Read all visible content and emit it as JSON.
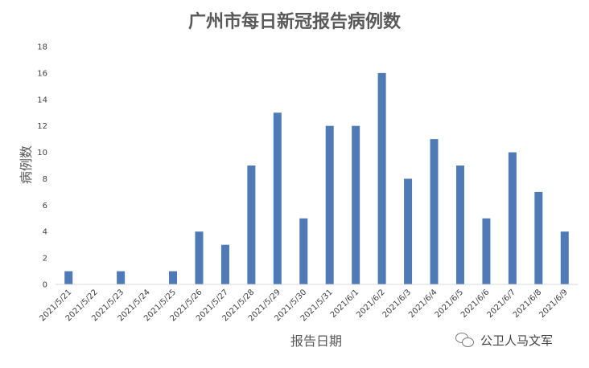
{
  "chart_data": {
    "type": "bar",
    "title": "广州市每日新冠报告病例数",
    "xlabel": "报告日期",
    "ylabel": "病例数",
    "categories": [
      "2021/5/21",
      "2021/5/22",
      "2021/5/23",
      "2021/5/24",
      "2021/5/25",
      "2021/5/26",
      "2021/5/27",
      "2021/5/28",
      "2021/5/29",
      "2021/5/30",
      "2021/5/31",
      "2021/6/1",
      "2021/6/2",
      "2021/6/3",
      "2021/6/4",
      "2021/6/5",
      "2021/6/6",
      "2021/6/7",
      "2021/6/8",
      "2021/6/9"
    ],
    "values": [
      1,
      0,
      1,
      0,
      1,
      4,
      3,
      9,
      13,
      5,
      12,
      12,
      16,
      8,
      11,
      9,
      5,
      10,
      7,
      4
    ],
    "ylim": [
      0,
      18
    ],
    "yticks": [
      0,
      2,
      4,
      6,
      8,
      10,
      12,
      14,
      16,
      18
    ],
    "grid": false,
    "legend": "none",
    "bar_color": "#4f7ab5"
  },
  "watermark": {
    "text": "公卫人马文军",
    "icon": "wechat-icon"
  }
}
